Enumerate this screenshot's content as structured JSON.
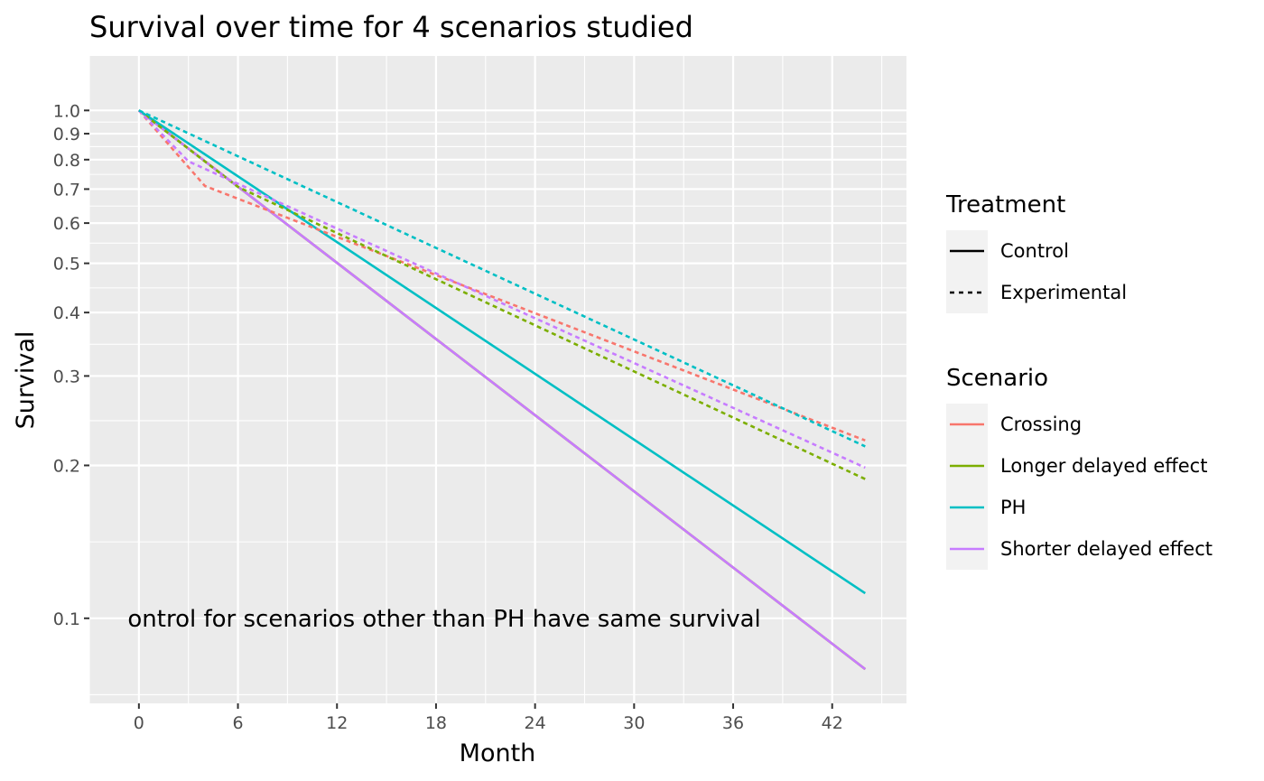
{
  "chart_data": {
    "type": "line",
    "title": "Survival over time for 4 scenarios studied",
    "xlabel": "Month",
    "ylabel": "Survival",
    "xlim": [
      -3,
      46.5
    ],
    "ylim": [
      0.068,
      1.28
    ],
    "y_scale": "log",
    "x_ticks": [
      0,
      6,
      12,
      18,
      24,
      30,
      36,
      42
    ],
    "x_tick_labels": [
      "0",
      "6",
      "12",
      "18",
      "24",
      "30",
      "36",
      "42"
    ],
    "y_ticks": [
      0.1,
      0.2,
      0.3,
      0.4,
      0.5,
      0.6,
      0.7,
      0.8,
      0.9,
      1.0
    ],
    "y_tick_labels": [
      "0.1",
      "0.2",
      "0.3",
      "0.4",
      "0.5",
      "0.6",
      "0.7",
      "0.8",
      "0.9",
      "1.0"
    ],
    "grid": true,
    "legends": [
      {
        "title": "Treatment",
        "entries": [
          {
            "label": "Control",
            "dash": "solid"
          },
          {
            "label": "Experimental",
            "dash": "dotted"
          }
        ]
      },
      {
        "title": "Scenario",
        "entries": [
          {
            "label": "Crossing",
            "color": "#F8766D"
          },
          {
            "label": "Longer delayed effect",
            "color": "#7CAE00"
          },
          {
            "label": "PH",
            "color": "#00BFC4"
          },
          {
            "label": "Shorter delayed effect",
            "color": "#C77CFF"
          }
        ]
      }
    ],
    "legend_position": "right",
    "annotation": {
      "text": "ontrol for scenarios other than PH have same survival",
      "x": 18.5,
      "y": 0.1
    },
    "series": [
      {
        "scenario": "Crossing",
        "treatment": "Control",
        "color": "#F8766D",
        "dash": "solid",
        "x": [
          0,
          44
        ],
        "y": [
          1.0,
          0.0794
        ]
      },
      {
        "scenario": "Longer delayed effect",
        "treatment": "Control",
        "color": "#7CAE00",
        "dash": "solid",
        "x": [
          0,
          44
        ],
        "y": [
          1.0,
          0.0794
        ]
      },
      {
        "scenario": "Shorter delayed effect",
        "treatment": "Control",
        "color": "#C77CFF",
        "dash": "solid",
        "x": [
          0,
          44
        ],
        "y": [
          1.0,
          0.0794
        ]
      },
      {
        "scenario": "PH",
        "treatment": "Control",
        "color": "#00BFC4",
        "dash": "solid",
        "x": [
          0,
          44
        ],
        "y": [
          1.0,
          0.112
        ]
      },
      {
        "scenario": "Crossing",
        "treatment": "Experimental",
        "color": "#F8766D",
        "dash": "dotted",
        "x": [
          0,
          4,
          44
        ],
        "y": [
          1.0,
          0.71,
          0.224
        ]
      },
      {
        "scenario": "Longer delayed effect",
        "treatment": "Experimental",
        "color": "#7CAE00",
        "dash": "dotted",
        "x": [
          0,
          6,
          44
        ],
        "y": [
          1.0,
          0.707,
          0.188
        ]
      },
      {
        "scenario": "Shorter delayed effect",
        "treatment": "Experimental",
        "color": "#C77CFF",
        "dash": "dotted",
        "x": [
          0,
          3,
          44
        ],
        "y": [
          1.0,
          0.794,
          0.198
        ]
      },
      {
        "scenario": "PH",
        "treatment": "Experimental",
        "color": "#00BFC4",
        "dash": "dotted",
        "x": [
          0,
          44
        ],
        "y": [
          1.0,
          0.218
        ]
      }
    ]
  }
}
